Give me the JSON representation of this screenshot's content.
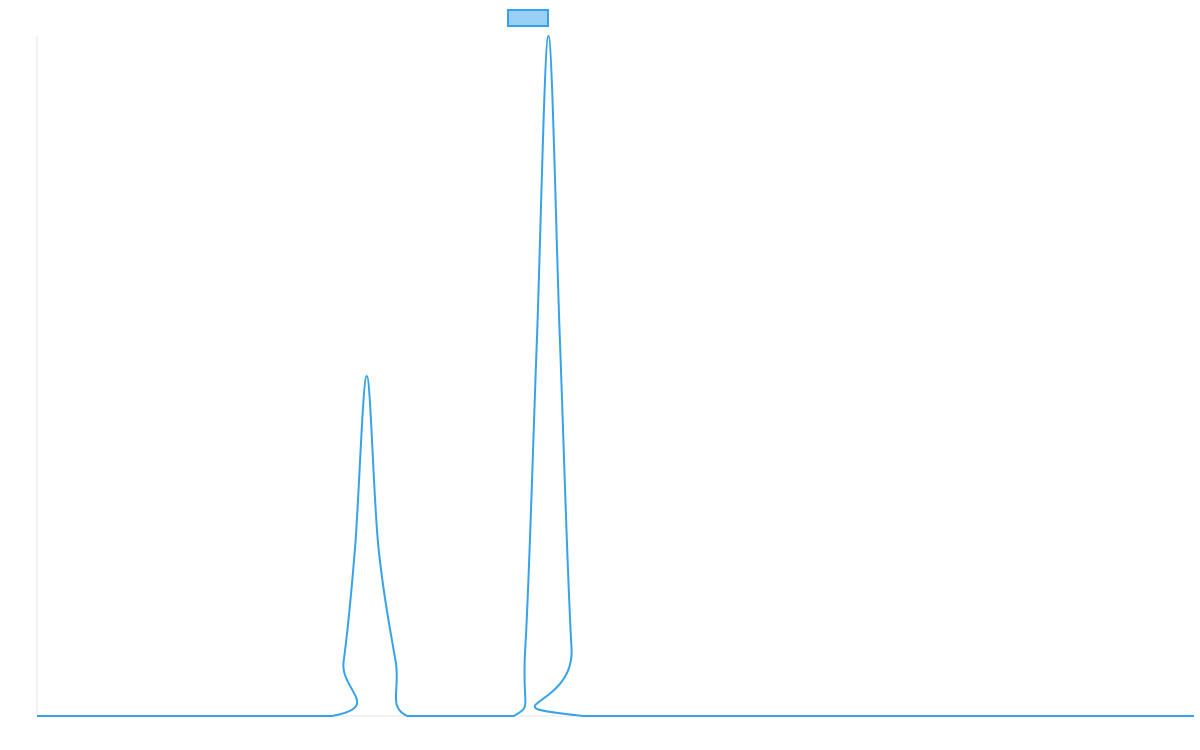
{
  "chart_data": {
    "type": "line",
    "title": "",
    "xlabel": "",
    "ylabel": "",
    "xlim": [
      0,
      100
    ],
    "ylim": [
      0,
      1
    ],
    "grid": false,
    "legend": {
      "position": "top-center",
      "entries": [
        {
          "label": "",
          "color": "#36a2eb",
          "fill": "#9ad0f5"
        }
      ]
    },
    "series": [
      {
        "color": "#36a2eb",
        "x": [
          0,
          25.5,
          26.5,
          27.5,
          28.5,
          29.5,
          31.0,
          32.0,
          41.2,
          42.2,
          43.2,
          44.2,
          45.2,
          46.2,
          47.2,
          100
        ],
        "y": [
          0,
          0,
          0.08,
          0.25,
          0.5,
          0.25,
          0.08,
          0,
          0,
          0.1,
          0.55,
          1.0,
          0.55,
          0.1,
          0,
          0
        ]
      }
    ]
  }
}
